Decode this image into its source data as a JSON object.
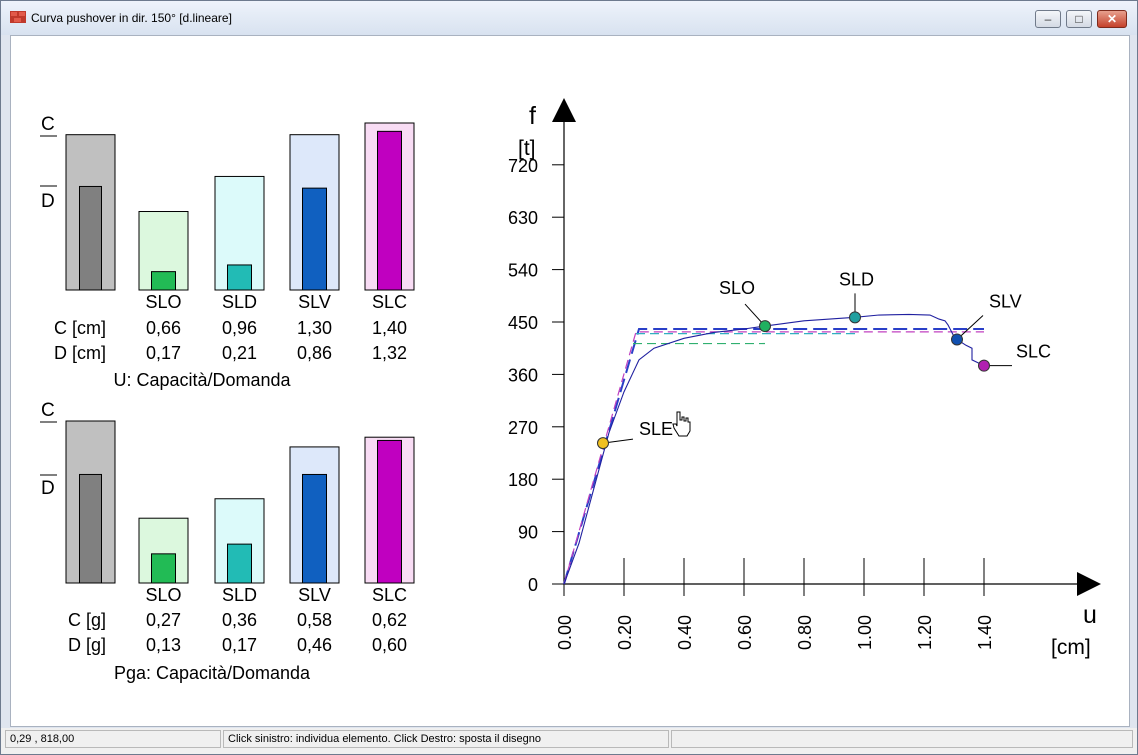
{
  "window": {
    "title": "Curva pushover in dir. 150° [d.lineare]",
    "minimize_icon": "minimize-icon",
    "maximize_icon": "maximize-icon",
    "close_icon": "close-icon"
  },
  "status": {
    "coords": "0,29 , 818,00",
    "hint": "Click sinistro: individua elemento. Click Destro: sposta il disegno"
  },
  "panels": [
    {
      "c_mark": "C",
      "d_mark": "D",
      "caption": "U: Capacità/Domanda",
      "c_row_label": "C [cm]",
      "d_row_label": "D [cm]",
      "columns": [
        {
          "label": "",
          "c": "",
          "d": "",
          "outer": 0.93,
          "inner": 0.62,
          "fill": "#c0c0c0",
          "inner_fill": "#808080"
        },
        {
          "label": "SLO",
          "c": "0,66",
          "d": "0,17",
          "outer": 0.47,
          "inner": 0.11,
          "fill": "#dcf8de",
          "inner_fill": "#22bb55"
        },
        {
          "label": "SLD",
          "c": "0,96",
          "d": "0,21",
          "outer": 0.68,
          "inner": 0.15,
          "fill": "#dcfafa",
          "inner_fill": "#22bbb5"
        },
        {
          "label": "SLV",
          "c": "1,30",
          "d": "0,86",
          "outer": 0.93,
          "inner": 0.61,
          "fill": "#dde8fa",
          "inner_fill": "#1060c0"
        },
        {
          "label": "SLC",
          "c": "1,40",
          "d": "1,32",
          "outer": 1.0,
          "inner": 0.95,
          "fill": "#f8dcf4",
          "inner_fill": "#c000c0"
        }
      ]
    },
    {
      "c_mark": "C",
      "d_mark": "D",
      "caption": "Pga: Capacità/Domanda",
      "c_row_label": "C [g]",
      "d_row_label": "D [g]",
      "columns": [
        {
          "label": "",
          "c": "",
          "d": "",
          "outer": 1.0,
          "inner": 0.67,
          "fill": "#c0c0c0",
          "inner_fill": "#808080"
        },
        {
          "label": "SLO",
          "c": "0,27",
          "d": "0,13",
          "outer": 0.4,
          "inner": 0.18,
          "fill": "#dcf8de",
          "inner_fill": "#22bb55"
        },
        {
          "label": "SLD",
          "c": "0,36",
          "d": "0,17",
          "outer": 0.52,
          "inner": 0.24,
          "fill": "#dcfafa",
          "inner_fill": "#22bbb5"
        },
        {
          "label": "SLV",
          "c": "0,58",
          "d": "0,46",
          "outer": 0.84,
          "inner": 0.67,
          "fill": "#dde8fa",
          "inner_fill": "#1060c0"
        },
        {
          "label": "SLC",
          "c": "0,62",
          "d": "0,60",
          "outer": 0.9,
          "inner": 0.88,
          "fill": "#f8dcf4",
          "inner_fill": "#c000c0"
        }
      ]
    }
  ],
  "chart_data": {
    "type": "line",
    "xlabel": "u",
    "xunit": "[cm]",
    "ylabel": "f",
    "yunit": "[t]",
    "xlim": [
      0,
      1.8
    ],
    "ylim": [
      0,
      810
    ],
    "x_ticks": [
      0.0,
      0.2,
      0.4,
      0.6,
      0.8,
      1.0,
      1.2,
      1.4
    ],
    "x_tick_labels": [
      "0.00",
      "0.20",
      "0.40",
      "0.60",
      "0.80",
      "1.00",
      "1.20",
      "1.40"
    ],
    "y_ticks": [
      0,
      90,
      180,
      270,
      360,
      450,
      540,
      630,
      720
    ],
    "y_tick_labels": [
      "0",
      "90",
      "180",
      "270",
      "360",
      "450",
      "540",
      "630",
      "720"
    ],
    "series": [
      {
        "color": "#2020a0",
        "points": [
          [
            0,
            0
          ],
          [
            0.05,
            70
          ],
          [
            0.1,
            165
          ],
          [
            0.15,
            260
          ],
          [
            0.2,
            330
          ],
          [
            0.25,
            385
          ],
          [
            0.3,
            405
          ],
          [
            0.4,
            422
          ],
          [
            0.5,
            432
          ],
          [
            0.6,
            438
          ],
          [
            0.67,
            443
          ],
          [
            0.8,
            452
          ],
          [
            0.97,
            458
          ],
          [
            1.05,
            462
          ],
          [
            1.15,
            463
          ],
          [
            1.22,
            462
          ],
          [
            1.25,
            455
          ],
          [
            1.27,
            452
          ],
          [
            1.28,
            445
          ],
          [
            1.3,
            425
          ],
          [
            1.31,
            420
          ],
          [
            1.34,
            410
          ],
          [
            1.36,
            405
          ],
          [
            1.36,
            385
          ],
          [
            1.4,
            375
          ]
        ]
      }
    ],
    "bilinear_lines": [
      {
        "color": "#2a3fc8",
        "dash": "14,6",
        "width": 2,
        "points": [
          [
            0,
            0
          ],
          [
            0.25,
            438
          ],
          [
            1.4,
            438
          ]
        ]
      },
      {
        "color": "#c040c0",
        "dash": "9,5",
        "width": 1.2,
        "points": [
          [
            0,
            0
          ],
          [
            0.24,
            433
          ],
          [
            1.4,
            433
          ]
        ]
      },
      {
        "color": "#30b070",
        "dash": "9,5",
        "width": 1.2,
        "points": [
          [
            0.23,
            413
          ],
          [
            0.67,
            413
          ]
        ]
      },
      {
        "color": "#30b0c0",
        "dash": "9,5",
        "width": 1.2,
        "points": [
          [
            0.24,
            430
          ],
          [
            0.97,
            430
          ]
        ]
      }
    ],
    "markers": [
      {
        "label": "SLE",
        "x": 0.13,
        "y": 242,
        "color": "#f0c020",
        "label_dx": 36,
        "label_dy": -8,
        "line_dx": 30,
        "line_dy": -4
      },
      {
        "label": "SLO",
        "x": 0.67,
        "y": 443,
        "color": "#20b060",
        "label_dx": -46,
        "label_dy": -32,
        "line_dx": -20,
        "line_dy": -22
      },
      {
        "label": "SLD",
        "x": 0.97,
        "y": 458,
        "color": "#20a0a0",
        "label_dx": -16,
        "label_dy": -32,
        "line_dx": 0,
        "line_dy": -24
      },
      {
        "label": "SLV",
        "x": 1.31,
        "y": 420,
        "color": "#1050b0",
        "label_dx": 32,
        "label_dy": -32,
        "line_dx": 26,
        "line_dy": -24
      },
      {
        "label": "SLC",
        "x": 1.4,
        "y": 375,
        "color": "#b020b0",
        "label_dx": 32,
        "label_dy": -8,
        "line_dx": 28,
        "line_dy": 0
      }
    ]
  }
}
